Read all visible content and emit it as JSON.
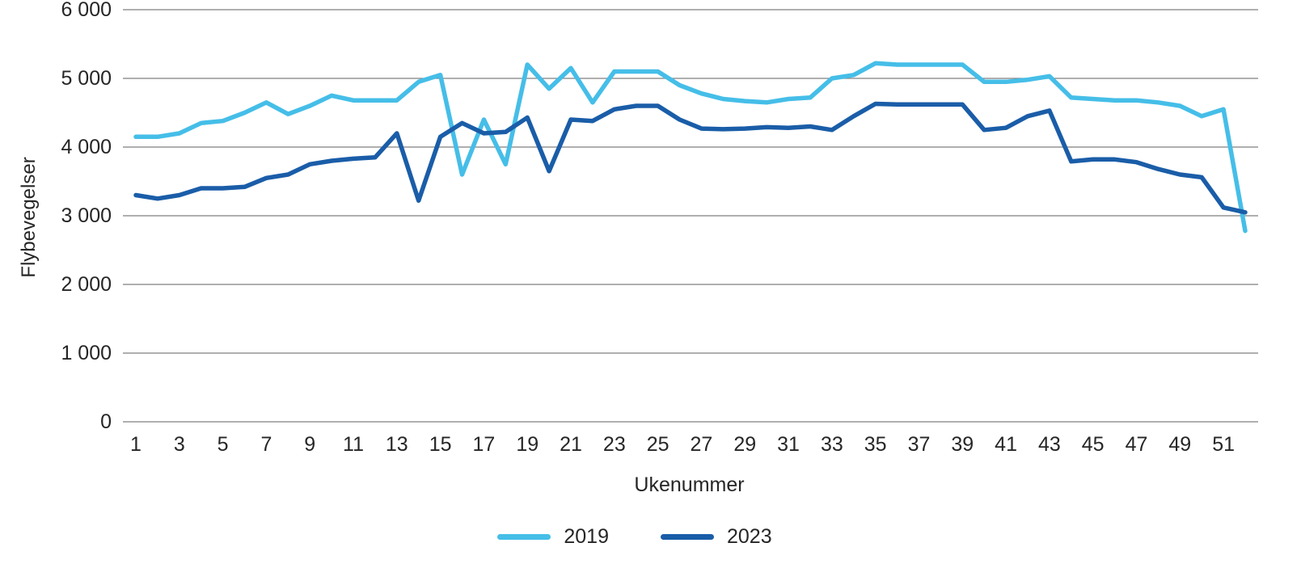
{
  "chart_data": {
    "type": "line",
    "xlabel": "Ukenummer",
    "ylabel": "Flybevegelser",
    "ylim": [
      0,
      6000
    ],
    "y_ticks": [
      0,
      1000,
      2000,
      3000,
      4000,
      5000,
      6000
    ],
    "y_tick_labels": [
      "0",
      "1 000",
      "2 000",
      "3 000",
      "4 000",
      "5 000",
      "6 000"
    ],
    "x": [
      1,
      2,
      3,
      4,
      5,
      6,
      7,
      8,
      9,
      10,
      11,
      12,
      13,
      14,
      15,
      16,
      17,
      18,
      19,
      20,
      21,
      22,
      23,
      24,
      25,
      26,
      27,
      28,
      29,
      30,
      31,
      32,
      33,
      34,
      35,
      36,
      37,
      38,
      39,
      40,
      41,
      42,
      43,
      44,
      45,
      46,
      47,
      48,
      49,
      50,
      51,
      52
    ],
    "x_tick_labels": [
      "1",
      "3",
      "5",
      "7",
      "9",
      "11",
      "13",
      "15",
      "17",
      "19",
      "21",
      "23",
      "25",
      "27",
      "29",
      "31",
      "33",
      "35",
      "37",
      "39",
      "41",
      "43",
      "45",
      "47",
      "49",
      "51"
    ],
    "grid": "horizontal",
    "legend_position": "bottom",
    "gridline_color": "#7f7f7f",
    "series": [
      {
        "name": "2019",
        "color": "#45BEE8",
        "values": [
          4150,
          4150,
          4200,
          4350,
          4380,
          4500,
          4650,
          4480,
          4600,
          4750,
          4680,
          4680,
          4680,
          4950,
          5050,
          3600,
          4400,
          3750,
          5200,
          4850,
          5150,
          4650,
          5100,
          5100,
          5100,
          4900,
          4780,
          4700,
          4670,
          4650,
          4700,
          4720,
          5000,
          5050,
          5220,
          5200,
          5200,
          5200,
          5200,
          4950,
          4950,
          4980,
          5030,
          4720,
          4700,
          4680,
          4680,
          4650,
          4600,
          4450,
          4550,
          2780
        ]
      },
      {
        "name": "2023",
        "color": "#1A5DA8",
        "values": [
          3300,
          3250,
          3300,
          3400,
          3400,
          3420,
          3550,
          3600,
          3750,
          3800,
          3830,
          3850,
          4200,
          3220,
          4150,
          4350,
          4200,
          4220,
          4430,
          3650,
          4400,
          4380,
          4550,
          4600,
          4600,
          4400,
          4270,
          4260,
          4270,
          4290,
          4280,
          4300,
          4250,
          4450,
          4630,
          4620,
          4620,
          4620,
          4620,
          4250,
          4280,
          4450,
          4530,
          3790,
          3820,
          3820,
          3780,
          3680,
          3600,
          3560,
          3120,
          3050
        ]
      }
    ]
  }
}
